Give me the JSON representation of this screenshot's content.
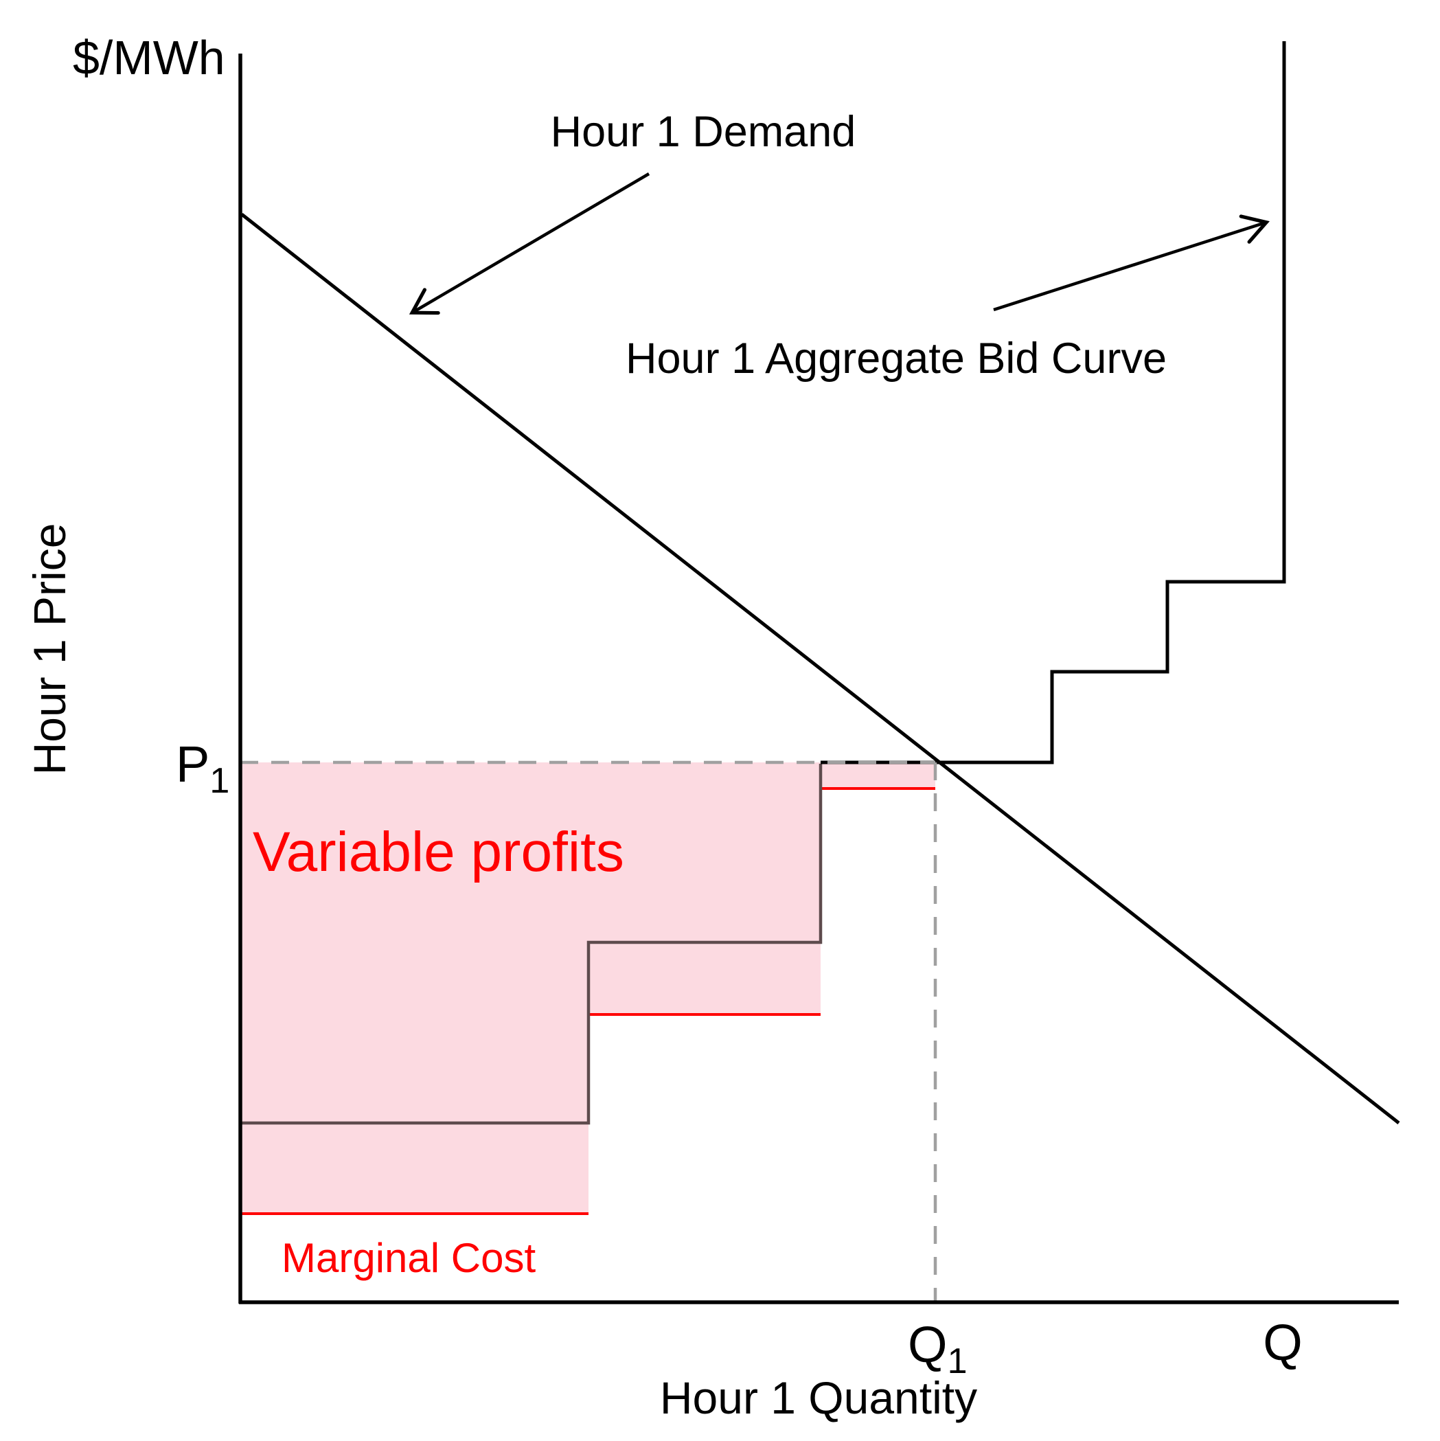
{
  "labels": {
    "y_unit": "$/MWh",
    "y_axis_title": "Hour 1 Price",
    "x_axis_title": "Hour 1 Quantity",
    "demand_label": "Hour 1 Demand",
    "bid_curve_label": "Hour 1 Aggregate Bid Curve",
    "profit_label": "Variable profits",
    "marginal_cost_label": "Marginal Cost",
    "p1_main": "P",
    "p1_sub": "1",
    "q1_main": "Q",
    "q1_sub": "1",
    "q_end": "Q"
  },
  "colors": {
    "axis": "#000000",
    "demand": "#000000",
    "bid_upper": "#000000",
    "bid_lower": "#5e4b4d",
    "marginal_cost": "#ff0000",
    "profit_fill": "#fcdae1",
    "dashed_guide": "#a0a0a0",
    "annotation_text_red": "#ff0000"
  },
  "chart_data": {
    "type": "line",
    "title": "",
    "xlabel": "Hour 1 Quantity",
    "ylabel": "Hour 1 Price",
    "y_unit_label": "$/MWh",
    "axes_numeric": false,
    "x_ticks": [
      {
        "label": "Q1",
        "x": 60
      },
      {
        "label": "Q",
        "x": 100
      }
    ],
    "y_ticks": [
      {
        "label": "P1",
        "y": 42.8
      }
    ],
    "equilibrium": {
      "price_label": "P1",
      "quantity_label": "Q1",
      "x": 60,
      "y": 42.8
    },
    "series": [
      {
        "name": "Hour 1 Demand",
        "type": "line",
        "color": "#000000",
        "points_xy": [
          [
            0.1,
            86.3
          ],
          [
            100,
            14.2
          ]
        ]
      },
      {
        "name": "Hour 1 Aggregate Bid Curve",
        "type": "step",
        "color": "#000000",
        "points_xy": [
          [
            0,
            14.2
          ],
          [
            30,
            14.2
          ],
          [
            30,
            28.5
          ],
          [
            50,
            28.5
          ],
          [
            50,
            42.8
          ],
          [
            70,
            42.8
          ],
          [
            70,
            50
          ],
          [
            80,
            50
          ],
          [
            80,
            57.1
          ],
          [
            90,
            57.1
          ],
          [
            90,
            100
          ]
        ]
      },
      {
        "name": "Marginal Cost",
        "type": "step",
        "color": "#ff0000",
        "segments_xy": [
          [
            [
              0,
              7
            ],
            [
              30,
              7
            ]
          ],
          [
            [
              30,
              22.8
            ],
            [
              50,
              22.8
            ]
          ],
          [
            [
              50,
              40.7
            ],
            [
              60,
              40.7
            ]
          ]
        ]
      }
    ],
    "shaded_region": {
      "name": "Variable profits",
      "fill": "#fcdae1",
      "description": "Area between market price P1 and the marginal-cost steps from 0 to Q1",
      "polygon_xy": [
        [
          0,
          42.8
        ],
        [
          60,
          42.8
        ],
        [
          60,
          40.7
        ],
        [
          50,
          40.7
        ],
        [
          50,
          22.8
        ],
        [
          30,
          22.8
        ],
        [
          30,
          7
        ],
        [
          0,
          7
        ]
      ]
    },
    "legend_position": "none",
    "grid": false
  },
  "geometry": {
    "y_axis": [
      [
        350,
        78
      ],
      [
        350,
        1898
      ]
    ],
    "x_axis": [
      [
        348,
        1896
      ],
      [
        2037,
        1896
      ]
    ],
    "demand_line": [
      [
        352,
        312
      ],
      [
        2037,
        1635
      ]
    ],
    "bid_curve_lower": [
      [
        350,
        1635
      ],
      [
        857,
        1635
      ],
      [
        857,
        1372
      ],
      [
        1195,
        1372
      ],
      [
        1195,
        1112
      ]
    ],
    "bid_curve_upper": [
      [
        1195,
        1110
      ],
      [
        1532,
        1110
      ],
      [
        1532,
        978
      ],
      [
        1700,
        978
      ],
      [
        1700,
        847
      ],
      [
        1870,
        847
      ],
      [
        1870,
        60
      ]
    ],
    "mc_step_1": [
      [
        350,
        1767
      ],
      [
        857,
        1767
      ]
    ],
    "mc_step_2": [
      [
        857,
        1477
      ],
      [
        1195,
        1477
      ]
    ],
    "mc_step_3": [
      [
        1195,
        1148
      ],
      [
        1362,
        1148
      ]
    ],
    "profit_area": [
      [
        350,
        1110
      ],
      [
        1362,
        1110
      ],
      [
        1362,
        1148
      ],
      [
        1195,
        1148
      ],
      [
        1195,
        1477
      ],
      [
        857,
        1477
      ],
      [
        857,
        1767
      ],
      [
        350,
        1767
      ]
    ],
    "p1_dashed": [
      [
        350,
        1110
      ],
      [
        1362,
        1110
      ]
    ],
    "q1_dashed": [
      [
        1362,
        1110
      ],
      [
        1362,
        1896
      ]
    ],
    "demand_arrow": [
      [
        945,
        253
      ],
      [
        604,
        453
      ]
    ],
    "bid_arrow": [
      [
        1447,
        451
      ],
      [
        1840,
        325
      ]
    ]
  }
}
